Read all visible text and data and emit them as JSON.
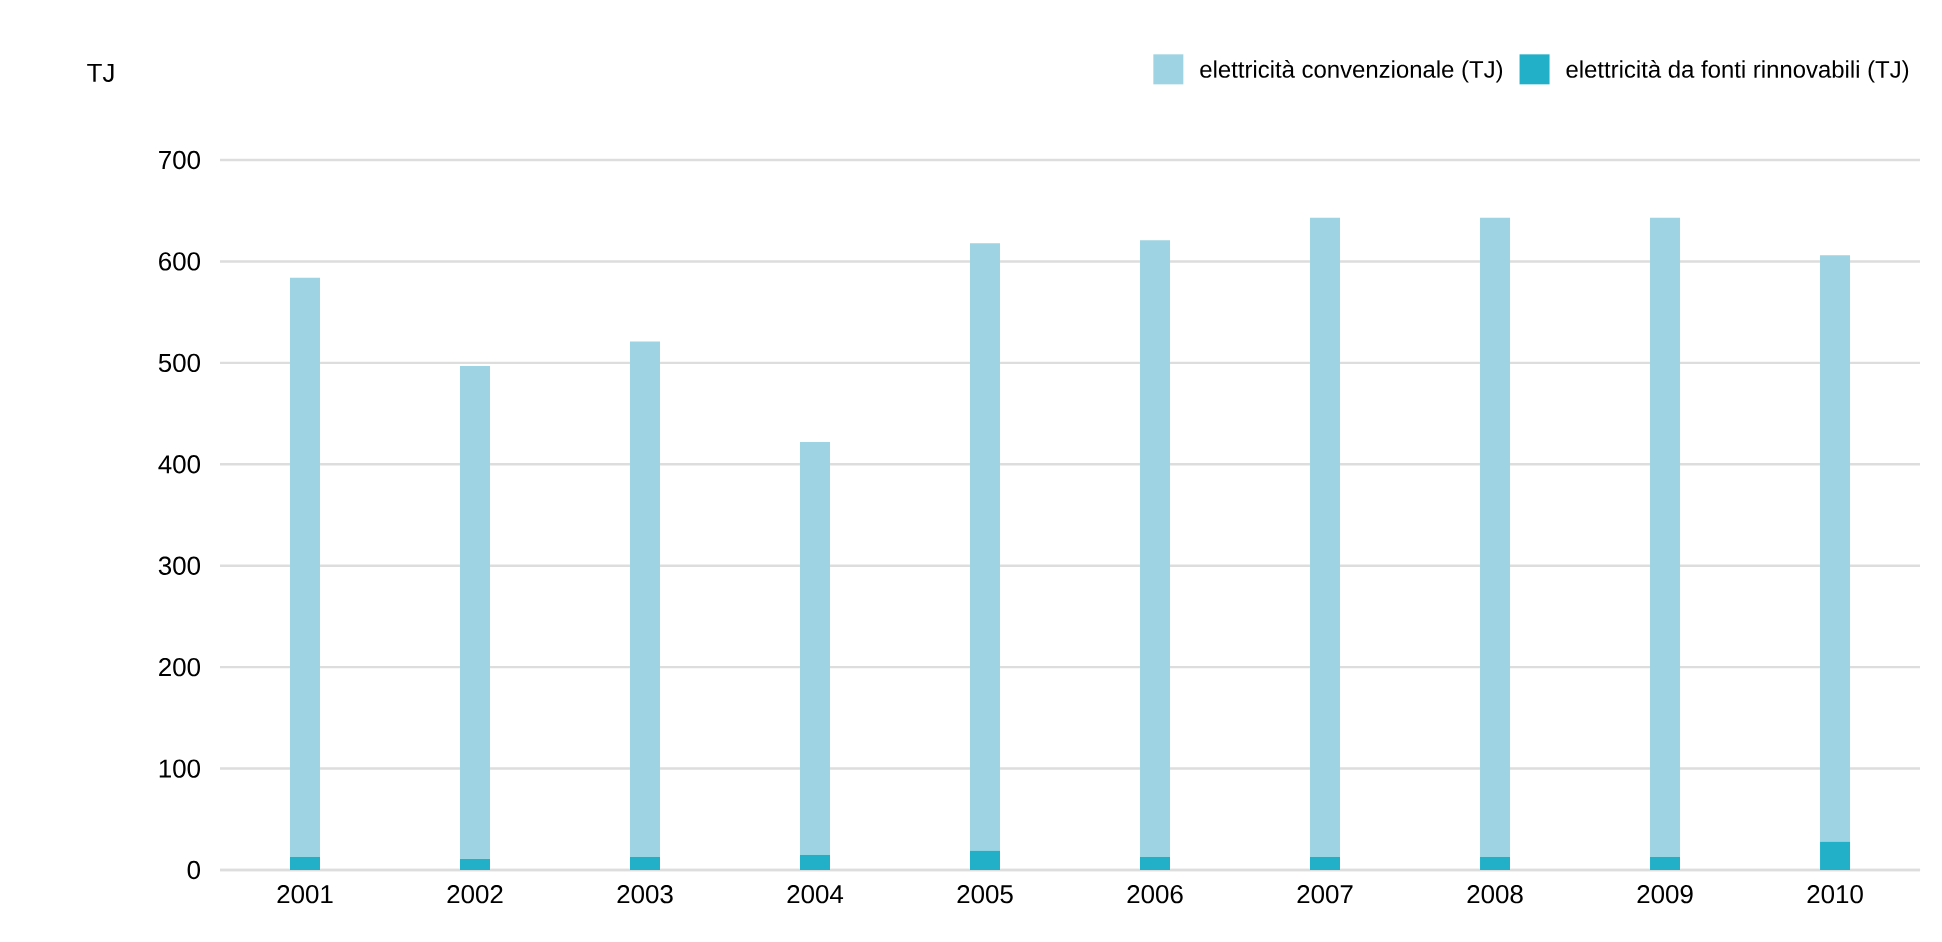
{
  "chart_data": {
    "type": "bar",
    "stacked": true,
    "ylabel": "TJ",
    "categories": [
      "2001",
      "2002",
      "2003",
      "2004",
      "2005",
      "2006",
      "2007",
      "2008",
      "2009",
      "2010"
    ],
    "series": [
      {
        "name": "elettricità da fonti rinnovabili (TJ)",
        "color": "#22b0c8",
        "values": [
          13,
          11,
          13,
          15,
          19,
          13,
          13,
          13,
          13,
          28
        ]
      },
      {
        "name": "elettricità convenzionale (TJ)",
        "color": "#9dd3e2",
        "values": [
          571,
          486,
          508,
          407,
          599,
          608,
          630,
          630,
          630,
          578
        ]
      }
    ],
    "ylim": [
      0,
      700
    ],
    "yticks": [
      0,
      100,
      200,
      300,
      400,
      500,
      600,
      700
    ],
    "grid": "y",
    "legend": "top right"
  }
}
